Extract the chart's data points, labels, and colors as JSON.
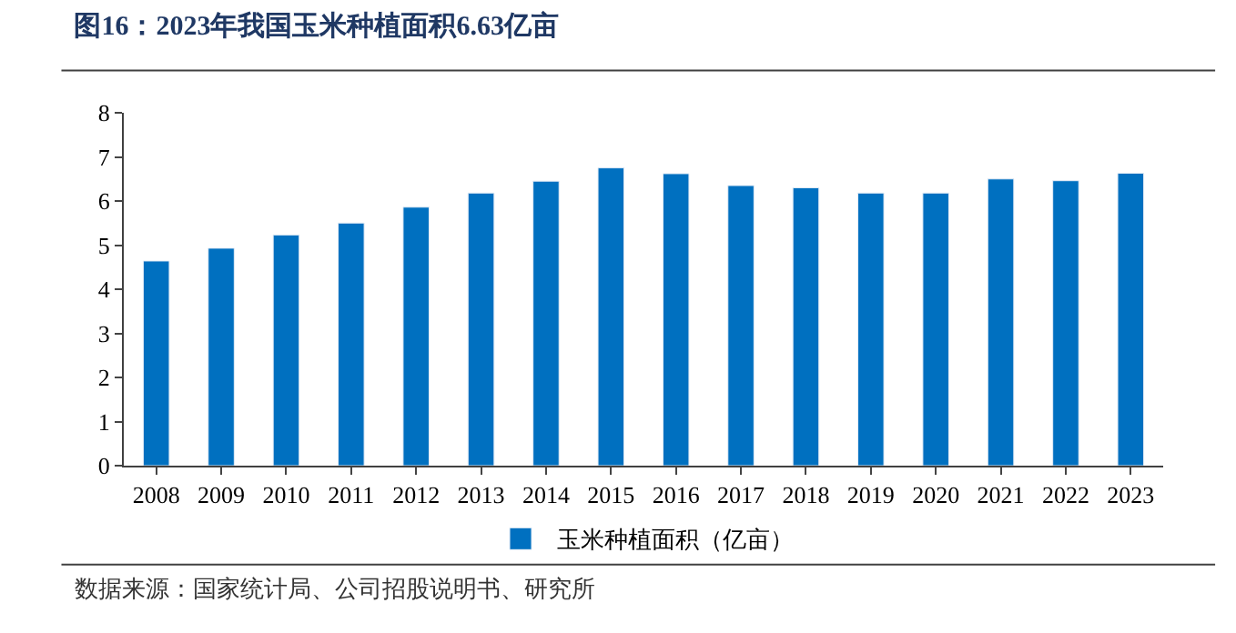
{
  "chart_data": {
    "type": "bar",
    "title": "图16：2023年我国玉米种植面积6.63亿亩",
    "categories": [
      "2008",
      "2009",
      "2010",
      "2011",
      "2012",
      "2013",
      "2014",
      "2015",
      "2016",
      "2017",
      "2018",
      "2019",
      "2020",
      "2021",
      "2022",
      "2023"
    ],
    "series": [
      {
        "name": "玉米种植面积（亿亩）",
        "color": "#0070c0",
        "values": [
          4.64,
          4.93,
          5.23,
          5.5,
          5.86,
          6.18,
          6.45,
          6.75,
          6.62,
          6.35,
          6.3,
          6.18,
          6.18,
          6.5,
          6.46,
          6.63
        ]
      }
    ],
    "ylim": [
      0,
      8
    ],
    "yticks": [
      0,
      1,
      2,
      3,
      4,
      5,
      6,
      7,
      8
    ],
    "legend": "bottom",
    "annotations": [
      "数据来源：国家统计局、公司招股说明书、研究所"
    ]
  }
}
